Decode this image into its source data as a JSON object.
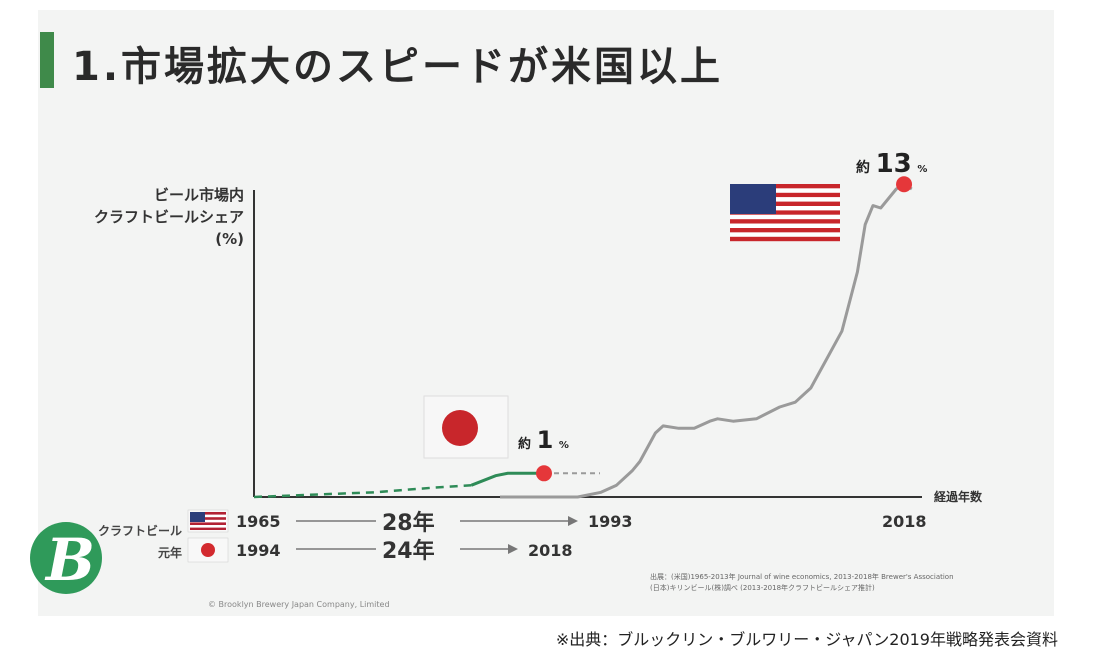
{
  "slide": {
    "title": "1.市場拡大のスピードが米国以上",
    "ylabel_lines": [
      "ビール市場内",
      "クラフトビールシェア",
      "(%)"
    ],
    "xlabel": "経過年数",
    "annotations": {
      "japan": {
        "prefix": "約",
        "value": "1",
        "unit": "%"
      },
      "usa": {
        "prefix": "約",
        "value": "13",
        "unit": "%"
      }
    },
    "rows_label": [
      "クラフトビール",
      "元年"
    ],
    "timeline": {
      "usa": {
        "start": "1965",
        "span": "28年",
        "end_mid": "1993",
        "end": "2018"
      },
      "japan": {
        "start": "1994",
        "span": "24年",
        "end": "2018"
      }
    },
    "source_note_lines": [
      "出展：(米国)1965-2013年 Journal of wine economics, 2013-2018年 Brewer's Association",
      "(日本)キリンビール(株)調べ (2013-2018年クラフトビールシェア推計)"
    ],
    "copyright": "© Brooklyn Brewery Japan Company, Limited",
    "logo_letter": "B"
  },
  "caption": "※出典：ブルックリン・ブルワリー・ジャパン2019年戦略発表会資料",
  "colors": {
    "title_accent": "#3f8a4a",
    "usa_line": "#9a9a9a",
    "japan_line": "#2e8b57",
    "marker": "#e5373a"
  },
  "chart_data": {
    "type": "line",
    "title": "",
    "xlabel": "経過年数",
    "ylabel": "ビール市場内クラフトビールシェア (%)",
    "x_unit": "years since launch",
    "ylim": [
      0,
      14
    ],
    "grid": false,
    "series": [
      {
        "name": "米国",
        "x": [
          0,
          5,
          10,
          13,
          15,
          17,
          18,
          20,
          21,
          23,
          25,
          27,
          28,
          30,
          33,
          36,
          38,
          40,
          42,
          44,
          46,
          47,
          48,
          49,
          50,
          51,
          52,
          53
        ],
        "y": [
          0.0,
          0.0,
          0.0,
          0.2,
          0.5,
          1.1,
          1.5,
          2.7,
          3.0,
          2.9,
          2.9,
          3.2,
          3.3,
          3.2,
          3.3,
          3.8,
          4.0,
          4.6,
          5.8,
          7.0,
          9.5,
          11.5,
          12.3,
          12.2,
          12.6,
          13.0,
          13.2,
          13.0
        ]
      },
      {
        "name": "日本",
        "x": [
          0,
          5,
          10,
          15,
          18,
          20,
          21,
          23,
          24
        ],
        "y": [
          0.0,
          0.1,
          0.2,
          0.4,
          0.5,
          0.9,
          1.0,
          1.0,
          1.0
        ]
      }
    ],
    "endpoint_labels": [
      {
        "series": "日本",
        "label": "約1%"
      },
      {
        "series": "米国",
        "label": "約13%"
      }
    ]
  }
}
